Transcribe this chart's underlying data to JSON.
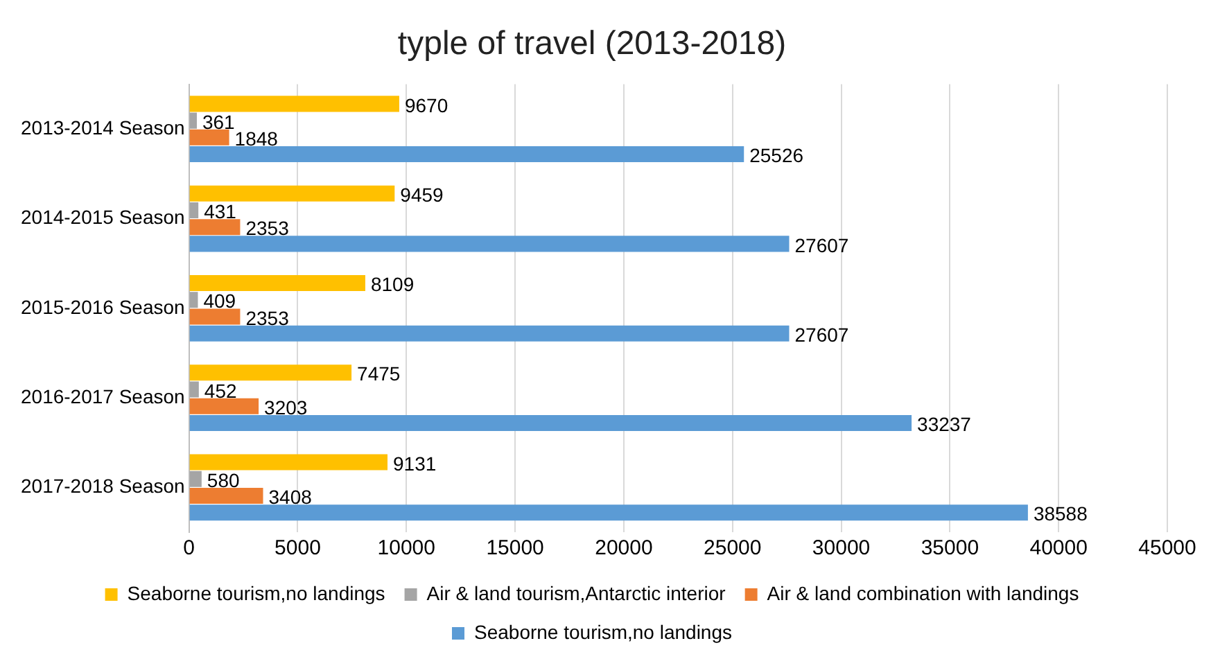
{
  "chart_data": {
    "type": "bar",
    "orientation": "horizontal",
    "title": "typle of travel (2013-2018)",
    "categories": [
      "2013-2014 Season",
      "2014-2015 Season",
      "2015-2016 Season",
      "2016-2017 Season",
      "2017-2018 Season"
    ],
    "series": [
      {
        "name": "Seaborne tourism,no landings",
        "color": "#ffc000",
        "values": [
          9670,
          9459,
          8109,
          7475,
          9131
        ]
      },
      {
        "name": "Air & land tourism,Antarctic interior",
        "color": "#a5a5a5",
        "values": [
          361,
          431,
          409,
          452,
          580
        ]
      },
      {
        "name": "Air & land combination with landings",
        "color": "#ed7d31",
        "values": [
          1848,
          2353,
          2353,
          3203,
          3408
        ]
      },
      {
        "name": "Seaborne tourism,no landings",
        "color": "#5b9bd5",
        "values": [
          25526,
          27607,
          27607,
          33237,
          38588
        ]
      }
    ],
    "xlim": [
      0,
      45000
    ],
    "xticks": [
      0,
      5000,
      10000,
      15000,
      20000,
      25000,
      30000,
      35000,
      40000,
      45000
    ],
    "grid": "x",
    "legend": "bottom",
    "data_labels": true
  }
}
